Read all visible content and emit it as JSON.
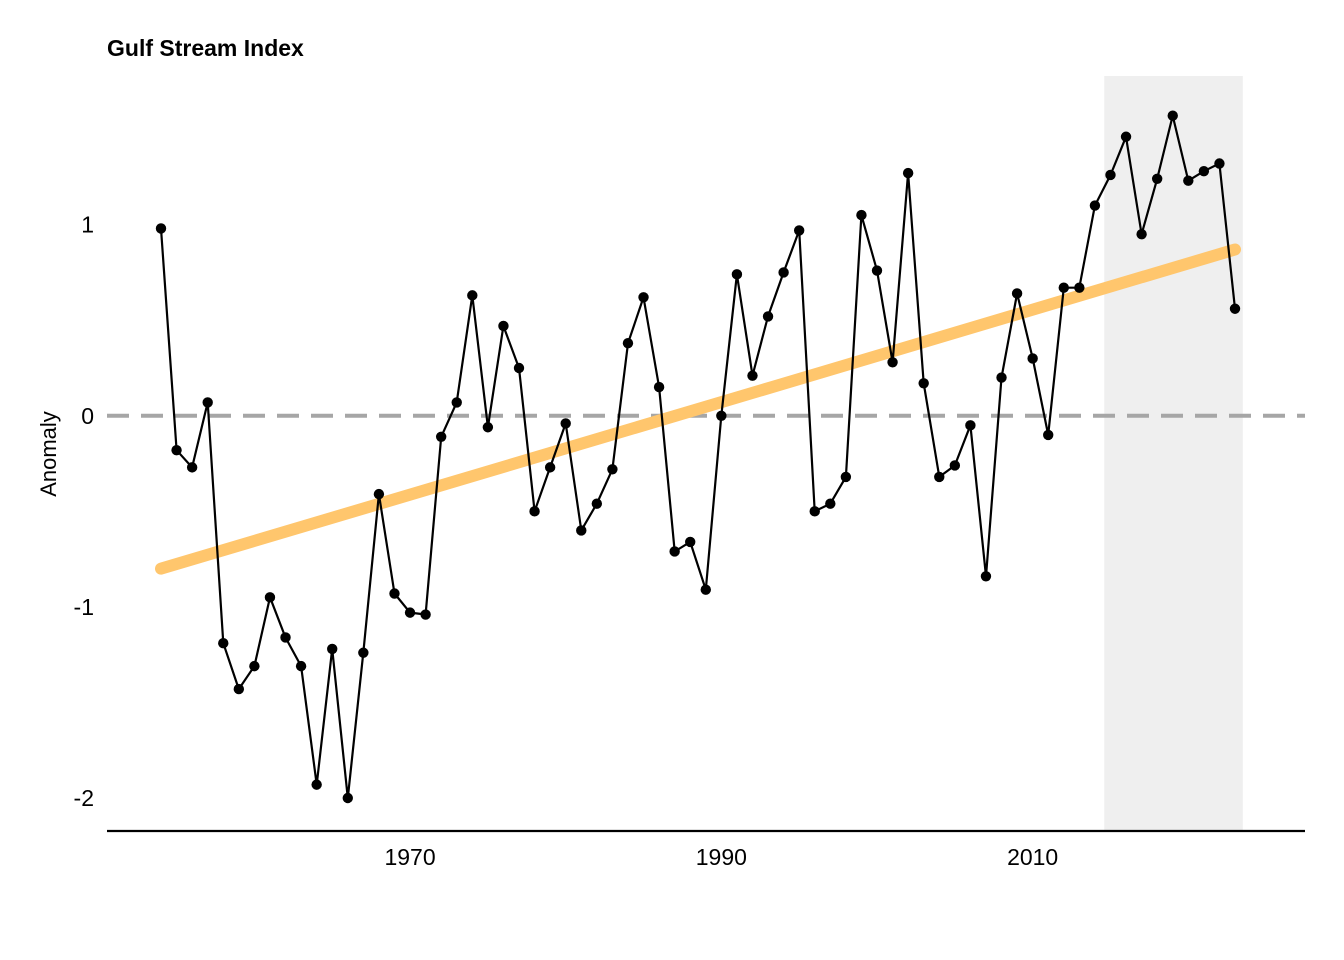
{
  "chart_data": {
    "type": "line",
    "title": "Gulf Stream Index",
    "xlabel": "",
    "ylabel": "Anomaly",
    "xlim": [
      1954,
      2023
    ],
    "ylim": [
      -2.0,
      1.6
    ],
    "x_ticks": [
      1970,
      1990,
      2010
    ],
    "y_ticks": [
      -2,
      -1,
      0,
      1
    ],
    "x_tick_labels": [
      "1970",
      "1990",
      "2010"
    ],
    "y_tick_labels": [
      "-2",
      "-1",
      "0",
      "1"
    ],
    "grid": false,
    "legend": "none",
    "highlight_region": {
      "x_start": 2014.6,
      "x_end": 2023.5,
      "color": "#efefef"
    },
    "reference_line": {
      "y": 0,
      "style": "dashed",
      "color": "#a6a6a6"
    },
    "trend_line": {
      "x": [
        1954,
        2023
      ],
      "y": [
        -0.8,
        0.87
      ],
      "color": "#ffc66d"
    },
    "series": [
      {
        "color": "#000000",
        "x": [
          1954,
          1955,
          1956,
          1957,
          1958,
          1959,
          1960,
          1961,
          1962,
          1963,
          1964,
          1965,
          1966,
          1967,
          1968,
          1969,
          1970,
          1971,
          1972,
          1973,
          1974,
          1975,
          1976,
          1977,
          1978,
          1979,
          1980,
          1981,
          1982,
          1983,
          1984,
          1985,
          1986,
          1987,
          1988,
          1989,
          1990,
          1991,
          1992,
          1993,
          1994,
          1995,
          1996,
          1997,
          1998,
          1999,
          2000,
          2001,
          2002,
          2003,
          2004,
          2005,
          2006,
          2007,
          2008,
          2009,
          2010,
          2011,
          2012,
          2013,
          2014,
          2015,
          2016,
          2017,
          2018,
          2019,
          2020,
          2021,
          2022,
          2023
        ],
        "y": [
          0.98,
          -0.18,
          -0.27,
          0.07,
          -1.19,
          -1.43,
          -1.31,
          -0.95,
          -1.16,
          -1.31,
          -1.93,
          -1.22,
          -2.0,
          -1.24,
          -0.41,
          -0.93,
          -1.03,
          -1.04,
          -0.11,
          0.07,
          0.63,
          -0.06,
          0.47,
          0.25,
          -0.5,
          -0.27,
          -0.04,
          -0.6,
          -0.46,
          -0.28,
          0.38,
          0.62,
          0.15,
          -0.71,
          -0.66,
          -0.91,
          0.0,
          0.74,
          0.21,
          0.52,
          0.75,
          0.97,
          -0.5,
          -0.46,
          -0.32,
          1.05,
          0.76,
          0.28,
          1.27,
          0.17,
          -0.32,
          -0.26,
          -0.05,
          -0.84,
          0.2,
          0.64,
          0.3,
          -0.1,
          0.67,
          0.67,
          1.1,
          1.26,
          1.46,
          0.95,
          1.24,
          1.57,
          1.23,
          1.28,
          1.32,
          0.56
        ]
      }
    ]
  }
}
